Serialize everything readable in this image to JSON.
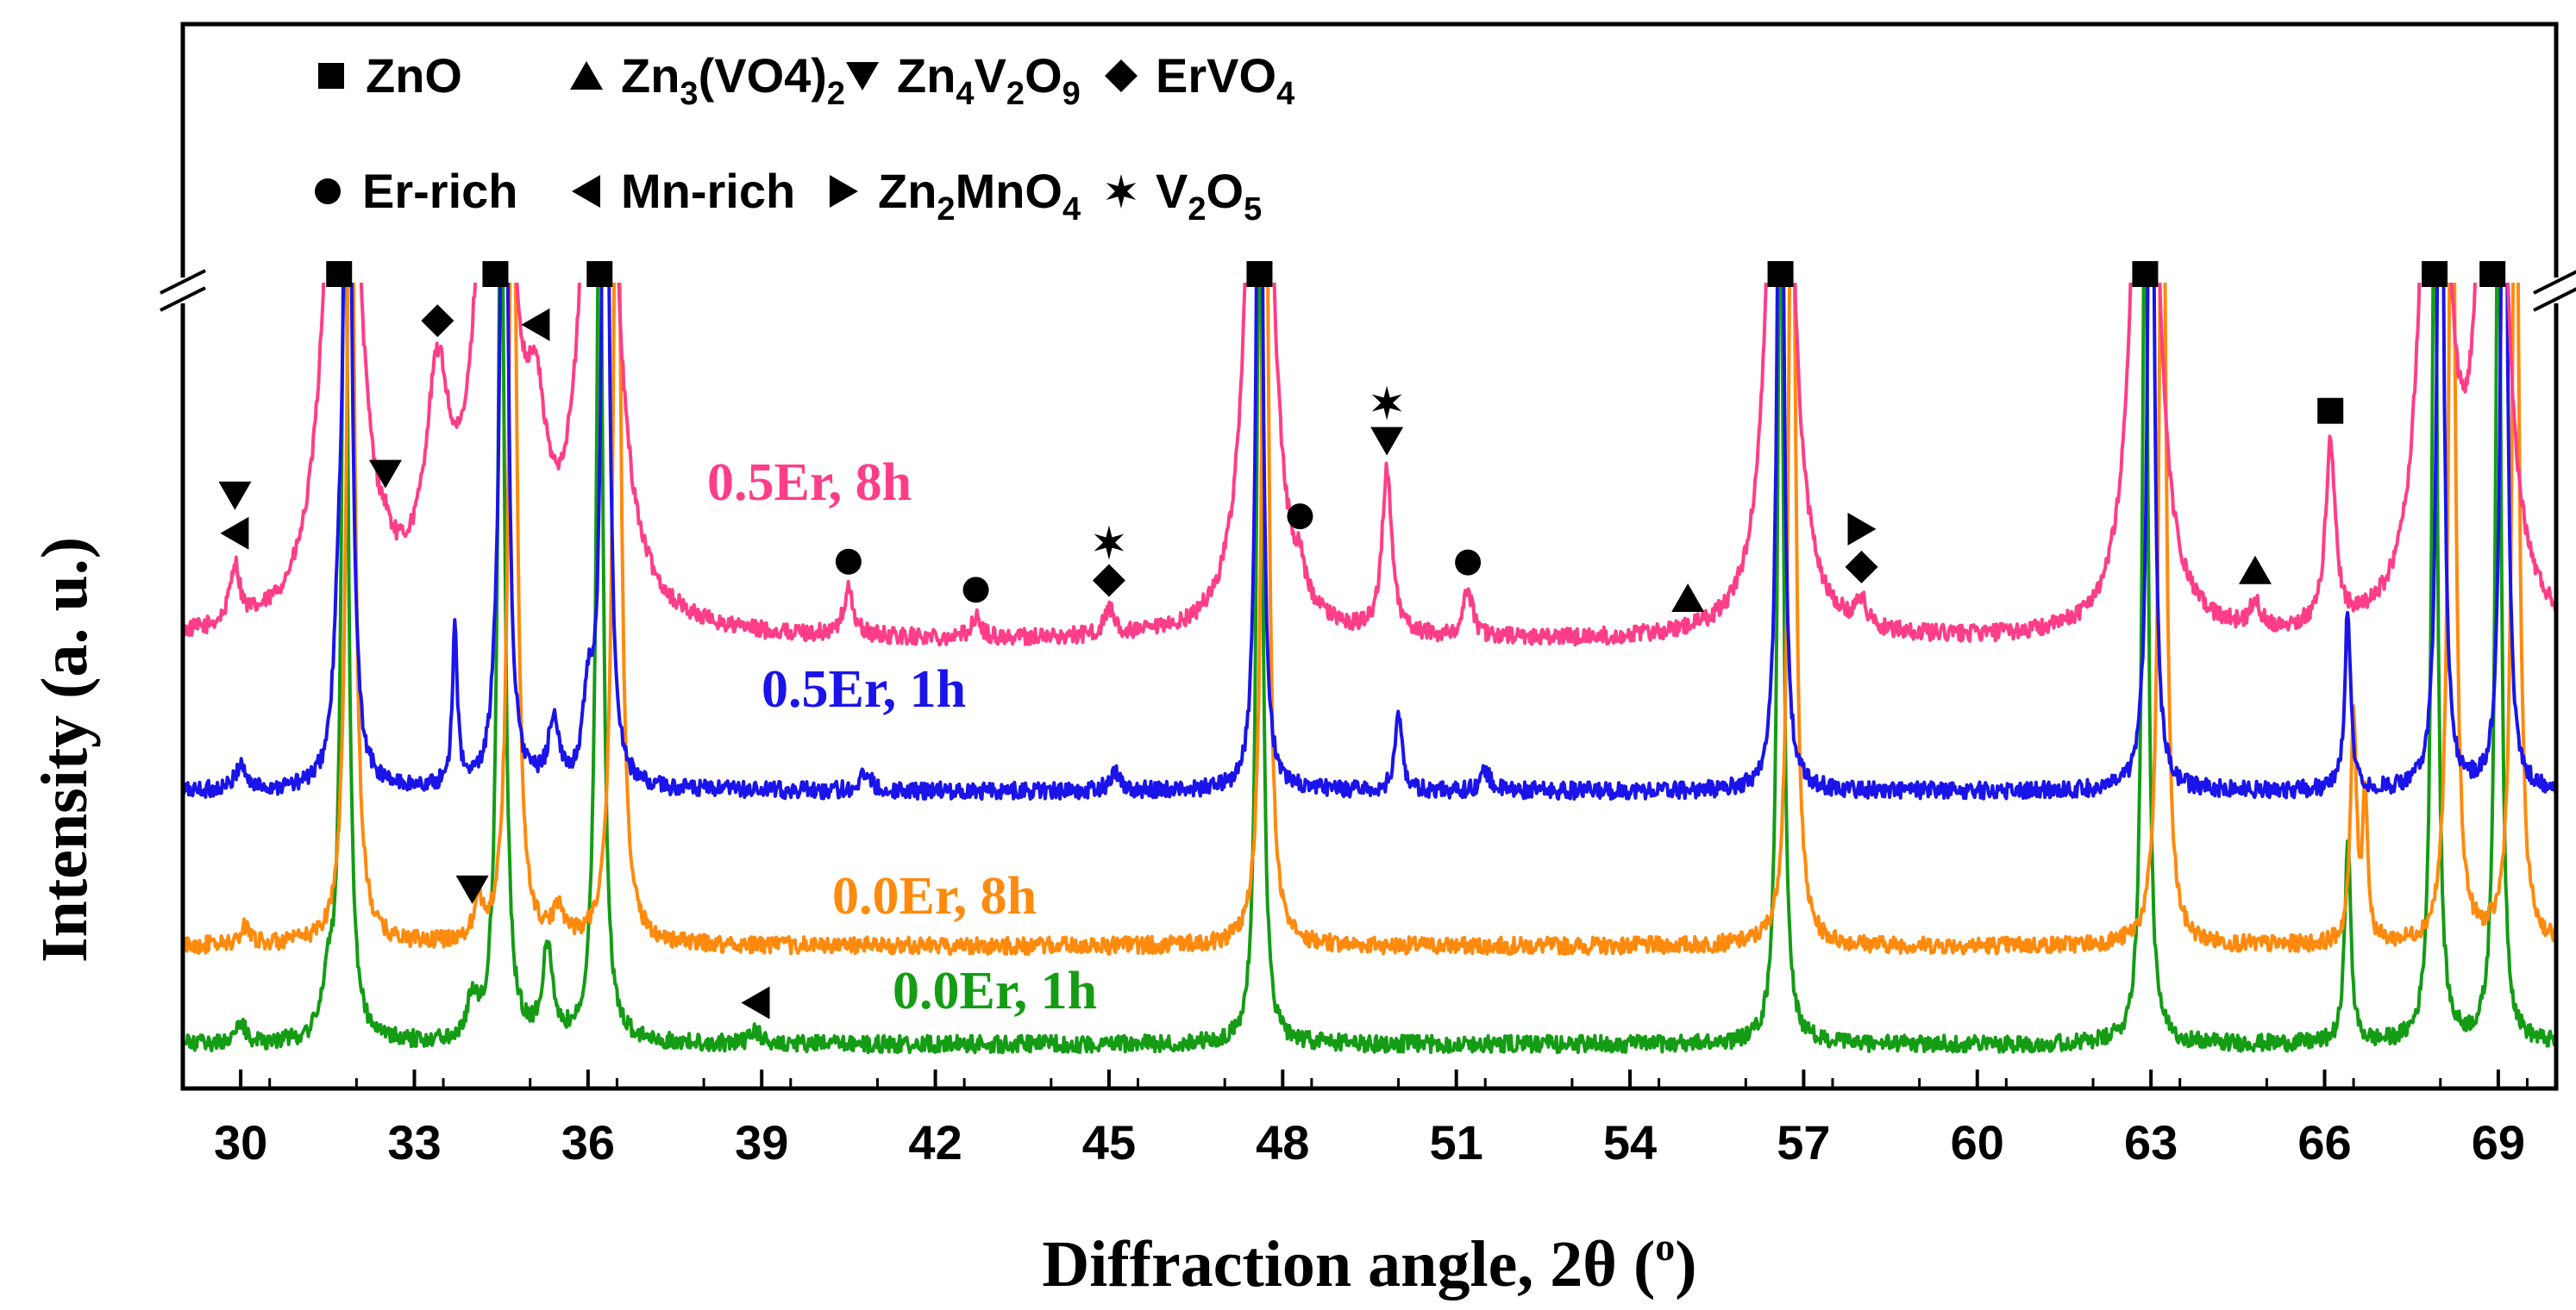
{
  "chart_data": {
    "type": "line",
    "title": "",
    "xlabel": "Diffraction angle, 2θ (°)",
    "xlabel_main": "Diffraction angle, 2θ (",
    "xlabel_deg": "o",
    "xlabel_close": ")",
    "ylabel": "Intensity (a. u.)",
    "xlim": [
      29,
      70
    ],
    "xticks": [
      30,
      33,
      36,
      39,
      42,
      45,
      48,
      51,
      54,
      57,
      60,
      63,
      66,
      69
    ],
    "y_axis_break": true,
    "legend": [
      {
        "marker": "square",
        "label": "ZnO"
      },
      {
        "marker": "triangle-up",
        "label": "Zn3(VO4)2",
        "pre": "Zn",
        "sub1": "3",
        "mid": "(VO4)",
        "sub2": "2"
      },
      {
        "marker": "triangle-down",
        "label": "Zn4V2O9",
        "pre": "Zn",
        "sub1": "4",
        "mid": "V",
        "sub2": "2",
        "post": "O",
        "sub3": "9"
      },
      {
        "marker": "diamond",
        "label": "ErVO4",
        "pre": "ErVO",
        "sub1": "4"
      },
      {
        "marker": "circle",
        "label": "Er-rich"
      },
      {
        "marker": "triangle-left",
        "label": "Mn-rich"
      },
      {
        "marker": "triangle-right",
        "label": "Zn2MnO4",
        "pre": "Zn",
        "sub1": "2",
        "mid": "MnO",
        "sub2": "4"
      },
      {
        "marker": "star",
        "label": "V2O5",
        "pre": "V",
        "sub1": "2",
        "mid": "O",
        "sub2": "5"
      }
    ],
    "peak_width": 0.1,
    "series": [
      {
        "name": "0.5Er, 8h",
        "label": "0.5Er, 8h",
        "color": "#ff3d88",
        "baseline": 20,
        "peaks": [
          [
            29.9,
            9
          ],
          [
            31.75,
            140,
            0.25
          ],
          [
            32.5,
            2
          ],
          [
            33.4,
            32,
            0.25
          ],
          [
            34.4,
            140,
            0.25
          ],
          [
            35.1,
            20,
            0.2
          ],
          [
            36.2,
            140,
            0.25
          ],
          [
            40.5,
            7
          ],
          [
            42.7,
            3
          ],
          [
            45.0,
            4
          ],
          [
            47.6,
            140,
            0.2
          ],
          [
            48.3,
            4
          ],
          [
            49.8,
            25
          ],
          [
            51.2,
            7
          ],
          [
            56.6,
            140,
            0.2
          ],
          [
            58.0,
            4
          ],
          [
            62.9,
            140,
            0.2
          ],
          [
            64.8,
            4
          ],
          [
            66.1,
            28
          ],
          [
            67.9,
            140,
            0.2
          ],
          [
            68.9,
            140,
            0.2
          ]
        ]
      },
      {
        "name": "0.5Er, 1h",
        "label": "0.5Er, 1h",
        "color": "#1a14ea",
        "baseline": 13,
        "peaks": [
          [
            30.0,
            4
          ],
          [
            31.7,
            20
          ],
          [
            31.85,
            140,
            0.07
          ],
          [
            33.7,
            25,
            0.05
          ],
          [
            34.4,
            4
          ],
          [
            34.55,
            140,
            0.07
          ],
          [
            35.4,
            10
          ],
          [
            36.0,
            12
          ],
          [
            36.3,
            140,
            0.07
          ],
          [
            40.8,
            3
          ],
          [
            45.1,
            3
          ],
          [
            47.6,
            140,
            0.06
          ],
          [
            50.0,
            12,
            0.07
          ],
          [
            51.5,
            3
          ],
          [
            56.6,
            140,
            0.06
          ],
          [
            63.0,
            140,
            0.06
          ],
          [
            66.4,
            28,
            0.06
          ],
          [
            68.0,
            140,
            0.06
          ],
          [
            69.1,
            140,
            0.06
          ]
        ]
      },
      {
        "name": "0.0Er, 8h",
        "label": "0.0Er, 8h",
        "color": "#ff8a0d",
        "baseline": 8,
        "peaks": [
          [
            30.1,
            3
          ],
          [
            31.9,
            140,
            0.08
          ],
          [
            34.1,
            7,
            0.07
          ],
          [
            34.7,
            140,
            0.08
          ],
          [
            35.5,
            5
          ],
          [
            36.5,
            140,
            0.08
          ],
          [
            47.7,
            140,
            0.07
          ],
          [
            56.8,
            140,
            0.07
          ],
          [
            63.2,
            140,
            0.07
          ],
          [
            66.5,
            35,
            0.06
          ],
          [
            66.7,
            23,
            0.05
          ],
          [
            68.2,
            140,
            0.07
          ],
          [
            69.3,
            140,
            0.07
          ]
        ]
      },
      {
        "name": "0.0Er, 1h",
        "label": "0.0Er, 1h",
        "color": "#149c14",
        "baseline": 4,
        "peaks": [
          [
            30.0,
            3
          ],
          [
            31.5,
            8
          ],
          [
            31.8,
            140,
            0.07
          ],
          [
            34.0,
            6
          ],
          [
            34.5,
            140,
            0.07
          ],
          [
            35.3,
            14
          ],
          [
            36.2,
            140,
            0.07
          ],
          [
            38.9,
            2
          ],
          [
            47.6,
            140,
            0.06
          ],
          [
            56.6,
            140,
            0.06
          ],
          [
            62.9,
            140,
            0.06
          ],
          [
            66.4,
            32,
            0.06
          ],
          [
            67.9,
            140,
            0.06
          ],
          [
            69.0,
            140,
            0.06
          ]
        ]
      }
    ],
    "annotations": [
      {
        "series": "0.5Er, 8h",
        "x": 31.7,
        "markers": [
          "square"
        ],
        "top": true
      },
      {
        "series": "0.5Er, 8h",
        "x": 34.4,
        "markers": [
          "square"
        ],
        "top": true
      },
      {
        "series": "0.5Er, 8h",
        "x": 36.2,
        "markers": [
          "square"
        ],
        "top": true
      },
      {
        "series": "0.5Er, 8h",
        "x": 47.6,
        "markers": [
          "square"
        ],
        "top": true
      },
      {
        "series": "0.5Er, 8h",
        "x": 56.6,
        "markers": [
          "square"
        ],
        "top": true
      },
      {
        "series": "0.5Er, 8h",
        "x": 62.9,
        "markers": [
          "square"
        ],
        "top": true
      },
      {
        "series": "0.5Er, 8h",
        "x": 67.9,
        "markers": [
          "square"
        ],
        "top": true
      },
      {
        "series": "0.5Er, 8h",
        "x": 68.9,
        "markers": [
          "square"
        ],
        "top": true
      },
      {
        "series": "0.5Er, 8h",
        "x": 29.9,
        "markers": [
          "triangle-left",
          "triangle-down"
        ]
      },
      {
        "series": "0.5Er, 8h",
        "x": 32.5,
        "markers": [
          "triangle-down"
        ]
      },
      {
        "series": "0.5Er, 8h",
        "x": 33.4,
        "markers": [
          "diamond"
        ]
      },
      {
        "series": "0.5Er, 8h",
        "x": 35.1,
        "markers": [
          "triangle-left"
        ]
      },
      {
        "series": "0.5Er, 8h",
        "x": 40.5,
        "markers": [
          "circle"
        ]
      },
      {
        "series": "0.5Er, 8h",
        "x": 42.7,
        "markers": [
          "circle"
        ]
      },
      {
        "series": "0.5Er, 8h",
        "x": 45.0,
        "markers": [
          "diamond",
          "star"
        ]
      },
      {
        "series": "0.5Er, 8h",
        "x": 48.3,
        "markers": [
          "circle"
        ]
      },
      {
        "series": "0.5Er, 8h",
        "x": 49.8,
        "markers": [
          "triangle-down",
          "star"
        ]
      },
      {
        "series": "0.5Er, 8h",
        "x": 51.2,
        "markers": [
          "circle"
        ]
      },
      {
        "series": "0.5Er, 8h",
        "x": 55.0,
        "markers": [
          "triangle-up"
        ]
      },
      {
        "series": "0.5Er, 8h",
        "x": 58.0,
        "markers": [
          "diamond",
          "triangle-right"
        ]
      },
      {
        "series": "0.5Er, 8h",
        "x": 64.8,
        "markers": [
          "triangle-up"
        ]
      },
      {
        "series": "0.5Er, 8h",
        "x": 66.1,
        "markers": [
          "square"
        ]
      },
      {
        "series": "0.0Er, 8h",
        "x": 34.0,
        "markers": [
          "triangle-down"
        ]
      },
      {
        "series": "0.0Er, 1h",
        "x": 38.9,
        "markers": [
          "triangle-left"
        ]
      }
    ]
  }
}
